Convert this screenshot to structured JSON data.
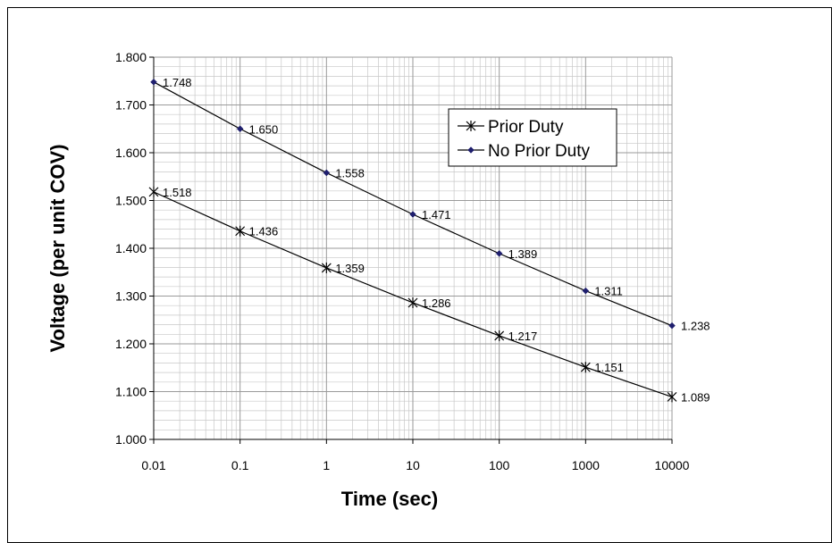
{
  "chart_data": {
    "type": "line",
    "x_scale": "log",
    "x": [
      0.01,
      0.1,
      1,
      10,
      100,
      1000,
      10000
    ],
    "x_tick_labels": [
      "0.01",
      "0.1",
      "1",
      "10",
      "100",
      "1000",
      "10000"
    ],
    "xlim": [
      0.01,
      10000
    ],
    "ylim": [
      1.0,
      1.8
    ],
    "y_ticks": [
      1.0,
      1.1,
      1.2,
      1.3,
      1.4,
      1.5,
      1.6,
      1.7,
      1.8
    ],
    "y_tick_labels": [
      "1.000",
      "1.100",
      "1.200",
      "1.300",
      "1.400",
      "1.500",
      "1.600",
      "1.700",
      "1.800"
    ],
    "xlabel": "Time (sec)",
    "ylabel": "Voltage (per unit COV)",
    "grid": true,
    "legend_position": "top-right",
    "series": [
      {
        "name": "Prior Duty",
        "marker": "asterisk",
        "color": "#000000",
        "values": [
          1.518,
          1.436,
          1.359,
          1.286,
          1.217,
          1.151,
          1.089
        ],
        "labels": [
          "1.518",
          "1.436",
          "1.359",
          "1.286",
          "1.217",
          "1.151",
          "1.089"
        ]
      },
      {
        "name": "No Prior Duty",
        "marker": "diamond",
        "color": "#1f1f6e",
        "values": [
          1.748,
          1.65,
          1.558,
          1.471,
          1.389,
          1.311,
          1.238
        ],
        "labels": [
          "1.748",
          "1.650",
          "1.558",
          "1.471",
          "1.389",
          "1.311",
          "1.238"
        ]
      }
    ]
  }
}
